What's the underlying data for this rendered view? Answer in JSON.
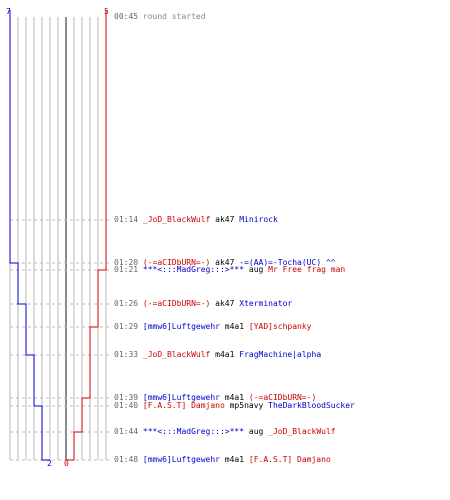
{
  "chart_data": {
    "type": "line",
    "score_top": {
      "blue": "7",
      "red": "5"
    },
    "score_bottom": {
      "blue": "2",
      "red": "0"
    },
    "series": [
      {
        "color": "#0000cc",
        "x": [
          0,
          1,
          2,
          3,
          4,
          5,
          6,
          7,
          8,
          9,
          10,
          11
        ],
        "values": [
          7,
          7,
          6,
          6,
          5,
          5,
          4,
          4,
          3,
          3,
          2,
          2
        ]
      },
      {
        "color": "#cc0000",
        "x": [
          0,
          1,
          2,
          3,
          4,
          5,
          6,
          7,
          8,
          9,
          10,
          11
        ],
        "values": [
          5,
          5,
          5,
          4,
          4,
          3,
          3,
          2,
          2,
          1,
          1,
          0
        ]
      }
    ],
    "events": [
      {
        "time": "00:45",
        "msg": [
          {
            "text": "round started",
            "c": "gray"
          }
        ]
      },
      {
        "time": "01:14",
        "msg": [
          {
            "text": "_JoD_BlackWulf",
            "c": "red"
          },
          {
            "text": " ak47 ",
            "c": "black"
          },
          {
            "text": "Minirock",
            "c": "blue"
          }
        ]
      },
      {
        "time": "01:20",
        "msg": [
          {
            "text": "(-=aCIDbURN=-)",
            "c": "red"
          },
          {
            "text": " ak47 ",
            "c": "black"
          },
          {
            "text": "-=(AA)=-Tocha(UC)",
            "c": "blue"
          },
          {
            "text": "    ^^",
            "c": "blue"
          }
        ]
      },
      {
        "time": "01:21",
        "msg": [
          {
            "text": "***<:::MadGreg:::>***",
            "c": "blue"
          },
          {
            "text": " aug ",
            "c": "black"
          },
          {
            "text": "Mr Free frag man",
            "c": "red"
          }
        ]
      },
      {
        "time": "01:26",
        "msg": [
          {
            "text": "(-=aCIDbURN=-)",
            "c": "red"
          },
          {
            "text": " ak47 ",
            "c": "black"
          },
          {
            "text": "Xterminator",
            "c": "blue"
          }
        ]
      },
      {
        "time": "01:29",
        "msg": [
          {
            "text": "[mmw6]Luftgewehr",
            "c": "blue"
          },
          {
            "text": " m4a1 ",
            "c": "black"
          },
          {
            "text": "[YAD]schpanky",
            "c": "red"
          }
        ]
      },
      {
        "time": "01:33",
        "msg": [
          {
            "text": "_JoD_BlackWulf",
            "c": "red"
          },
          {
            "text": " m4a1 ",
            "c": "black"
          },
          {
            "text": "FragMachine|alpha",
            "c": "blue"
          }
        ]
      },
      {
        "time": "01:39",
        "msg": [
          {
            "text": "[mmw6]Luftgewehr",
            "c": "blue"
          },
          {
            "text": " m4a1 ",
            "c": "black"
          },
          {
            "text": "(-=aCIDbURN=-)",
            "c": "red"
          }
        ]
      },
      {
        "time": "01:40",
        "msg": [
          {
            "text": "[F.A.S.T] Damjano",
            "c": "red"
          },
          {
            "text": " mp5navy ",
            "c": "black"
          },
          {
            "text": "TheDarkBloodSucker",
            "c": "blue"
          }
        ]
      },
      {
        "time": "01:44",
        "msg": [
          {
            "text": "***<:::MadGreg:::>***",
            "c": "blue"
          },
          {
            "text": " aug ",
            "c": "black"
          },
          {
            "text": "_JoD_BlackWulf",
            "c": "red"
          }
        ]
      },
      {
        "time": "01:48",
        "msg": [
          {
            "text": "[mmw6]Luftgewehr",
            "c": "blue"
          },
          {
            "text": " m4a1 ",
            "c": "black"
          },
          {
            "text": "[F.A.S.T] Damjano",
            "c": "red"
          }
        ]
      }
    ]
  },
  "colors": {
    "blue": "#0000cc",
    "red": "#cc0000",
    "black": "#000000",
    "gray": "#888888",
    "grid": "#b8b8b8",
    "center": "#707070",
    "dash": "#bbbbbb"
  }
}
